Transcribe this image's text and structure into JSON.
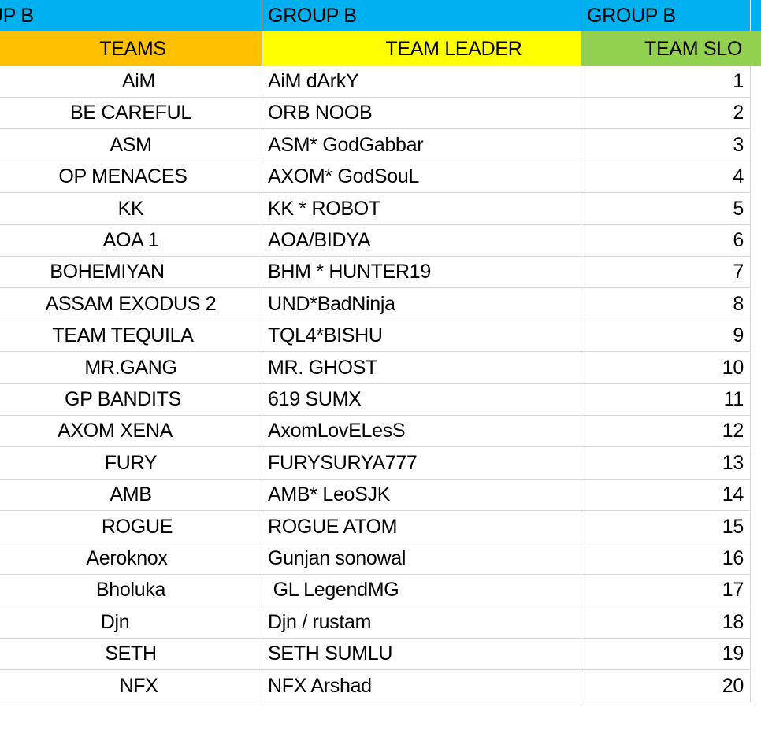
{
  "group_row": [
    "UP B",
    "GROUP B",
    "GROUP B"
  ],
  "header": {
    "teams": "TEAMS",
    "team_leader": "TEAM LEADER",
    "team_slot": "TEAM SLO"
  },
  "rows": [
    {
      "team": "AiM",
      "leader": "AiM dArkY",
      "slot": "1",
      "offset": 0
    },
    {
      "team": "BE CAREFUL",
      "leader": "ORB NOOB",
      "slot": "2",
      "offset": 0
    },
    {
      "team": "ASM",
      "leader": "ASM* GodGabbar",
      "slot": "3",
      "offset": 0
    },
    {
      "team": "OP MENACES",
      "leader": "AXOM* GodSouL",
      "slot": "4",
      "offset": 0
    },
    {
      "team": "KK",
      "leader": "KK * ROBOT",
      "slot": "5",
      "offset": 0
    },
    {
      "team": "AOA 1",
      "leader": "AOA/BIDYA",
      "slot": "6",
      "offset": 0
    },
    {
      "team": "BOHEMIYAN",
      "leader": "BHM * HUNTER19",
      "slot": "7",
      "offset": 0
    },
    {
      "team": "ASSAM EXODUS 2",
      "leader": "UND*BadNinja",
      "slot": "8",
      "offset": 0
    },
    {
      "team": "TEAM TEQUILA",
      "leader": "TQL4*BISHU",
      "slot": "9",
      "offset": 0
    },
    {
      "team": "MR.GANG",
      "leader": "MR. GHOST",
      "slot": "10",
      "offset": 0
    },
    {
      "team": "GP BANDITS",
      "leader": "619 SUMX",
      "slot": "11",
      "offset": 0
    },
    {
      "team": "AXOM XENA",
      "leader": "AxomLovELesS",
      "slot": "12",
      "offset": 0
    },
    {
      "team": "FURY",
      "leader": "FURYSURYA777",
      "slot": "13",
      "offset": 0
    },
    {
      "team": "AMB",
      "leader": "AMB* LeoSJK",
      "slot": "14",
      "offset": 0
    },
    {
      "team": "ROGUE",
      "leader": "ROGUE ATOM",
      "slot": "15",
      "offset": 0
    },
    {
      "team": "Aeroknox",
      "leader": "Gunjan sonowal",
      "slot": "16",
      "offset": 0
    },
    {
      "team": "Bholuka",
      "leader": " GL LegendMG",
      "slot": "17",
      "offset": 0
    },
    {
      "team": "Djn",
      "leader": "Djn / rustam",
      "slot": "18",
      "offset": 0
    },
    {
      "team": "SETH",
      "leader": "SETH SUMLU",
      "slot": "19",
      "offset": 0
    },
    {
      "team": "NFX",
      "leader": "NFX Arshad",
      "slot": "20",
      "offset": 0
    }
  ]
}
